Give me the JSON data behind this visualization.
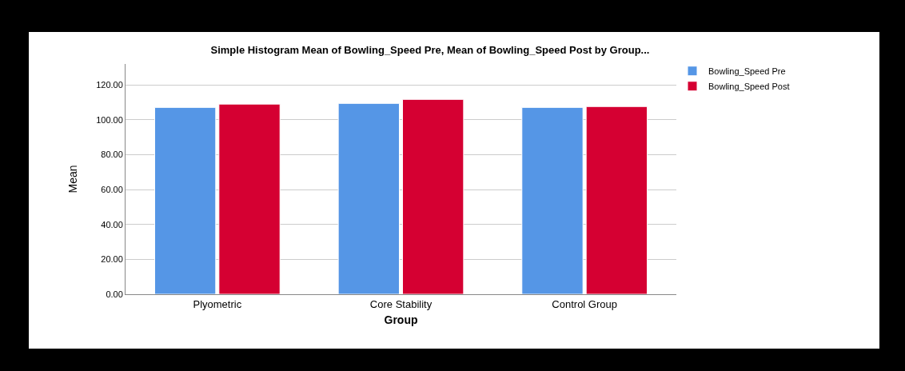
{
  "chart_data": {
    "type": "bar",
    "title": "Simple Histogram Mean of Bowling_Speed Pre, Mean of Bowling_Speed Post by Group...",
    "xlabel": "Group",
    "ylabel": "Mean",
    "categories": [
      "Plyometric",
      "Core Stability",
      "Control Group"
    ],
    "series": [
      {
        "name": "Bowling_Speed Pre",
        "color": "#5596e6",
        "values": [
          107.1,
          109.4,
          107.1
        ]
      },
      {
        "name": "Bowling_Speed Post",
        "color": "#d50032",
        "values": [
          109.0,
          111.7,
          107.6
        ]
      }
    ],
    "ylim": [
      0,
      132
    ],
    "yticks": [
      {
        "value": 0,
        "label": "0.00"
      },
      {
        "value": 20,
        "label": "20.00"
      },
      {
        "value": 40,
        "label": "40.00"
      },
      {
        "value": 60,
        "label": "60.00"
      },
      {
        "value": 80,
        "label": "80.00"
      },
      {
        "value": 100,
        "label": "100.00"
      },
      {
        "value": 120,
        "label": "120.00"
      }
    ],
    "grid": "y",
    "legend": "top right"
  }
}
